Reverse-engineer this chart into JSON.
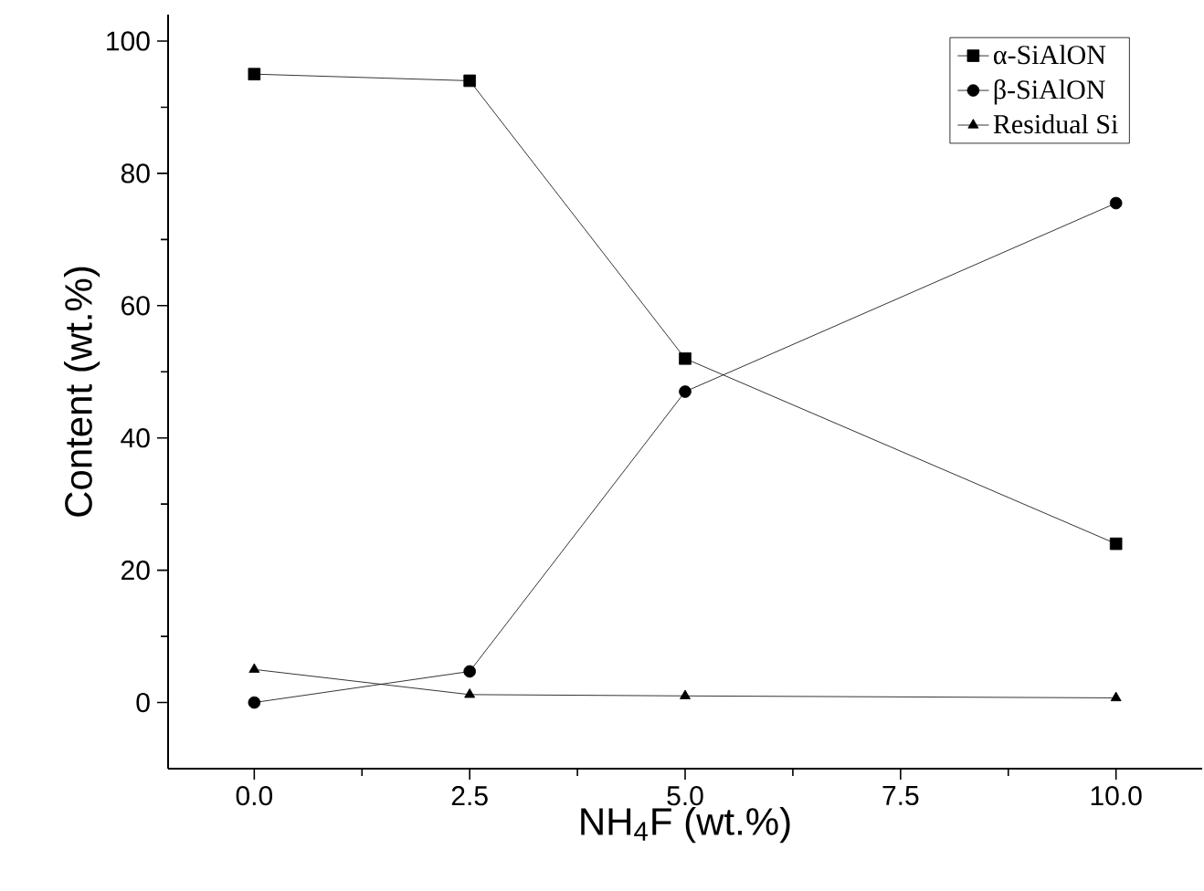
{
  "chart_data": {
    "type": "line",
    "xlabel": "NH$_{4}$F (wt.%)",
    "ylabel": "Content (wt.%)",
    "x": [
      0,
      2.5,
      5,
      10
    ],
    "series": [
      {
        "name": "α-SiAlON",
        "color": "#000000",
        "marker": "square",
        "values": [
          95,
          94,
          52,
          24
        ]
      },
      {
        "name": "β-SiAlON",
        "color": "#000000",
        "marker": "circle",
        "values": [
          0,
          4.7,
          47,
          75.5
        ]
      },
      {
        "name": "Residual Si",
        "color": "#000000",
        "marker": "triangle",
        "values": [
          5,
          1.2,
          1,
          0.7
        ]
      }
    ],
    "xlim": [
      -1,
      11
    ],
    "ylim": [
      -10,
      104
    ],
    "xticks": [
      {
        "value": 0,
        "label": "0.0"
      },
      {
        "value": 2.5,
        "label": "2.5"
      },
      {
        "value": 5,
        "label": "5.0"
      },
      {
        "value": 7.5,
        "label": "7.5"
      },
      {
        "value": 10,
        "label": "10.0"
      }
    ],
    "yticks": [
      0,
      20,
      40,
      60,
      80,
      100
    ],
    "grid": false,
    "legend": "top right",
    "line_style": "solid"
  }
}
